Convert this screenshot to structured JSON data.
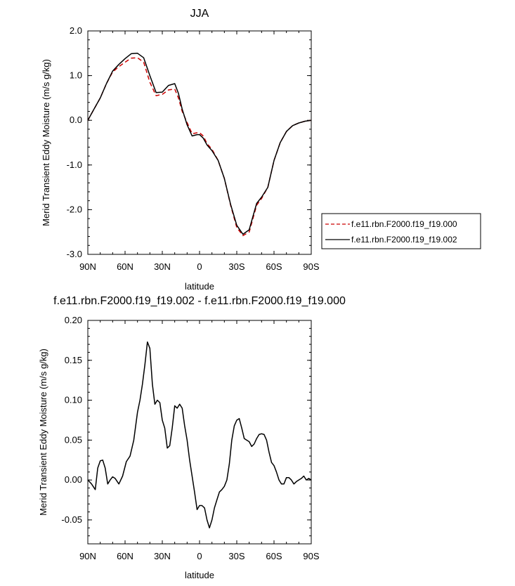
{
  "chart_data": [
    {
      "type": "line",
      "title": "JJA",
      "xlabel": "latitude",
      "ylabel": "Merid Transient Eddy Moisture (m/s g/kg)",
      "xlim": [
        90,
        -90
      ],
      "ylim": [
        -3.0,
        2.0
      ],
      "x_ticks": [
        90,
        60,
        30,
        0,
        -30,
        -60,
        -90
      ],
      "x_tick_labels": [
        "90N",
        "60N",
        "30N",
        "0",
        "30S",
        "60S",
        "90S"
      ],
      "y_ticks": [
        2.0,
        1.0,
        0.0,
        -1.0,
        -2.0,
        -3.0
      ],
      "y_tick_labels": [
        "2.0",
        "1.0",
        "0.0",
        "-1.0",
        "-2.0",
        "-3.0"
      ],
      "legend_position": "right",
      "series": [
        {
          "name": "f.e11.rbn.F2000.f19_f19.000",
          "color": "#cc0000",
          "dash": "dashed",
          "x": [
            90,
            85,
            80,
            75,
            70,
            65,
            60,
            55,
            50,
            45,
            40,
            35,
            30,
            25,
            20,
            17,
            14,
            10,
            6,
            2,
            0,
            -3,
            -6,
            -10,
            -15,
            -20,
            -25,
            -30,
            -35,
            -40,
            -43,
            -46,
            -50,
            -55,
            -60,
            -65,
            -70,
            -75,
            -80,
            -85,
            -90
          ],
          "y": [
            0.0,
            0.25,
            0.5,
            0.82,
            1.08,
            1.2,
            1.3,
            1.39,
            1.4,
            1.3,
            0.85,
            0.55,
            0.58,
            0.68,
            0.7,
            0.5,
            0.2,
            -0.05,
            -0.3,
            -0.28,
            -0.28,
            -0.35,
            -0.52,
            -0.65,
            -0.9,
            -1.3,
            -1.9,
            -2.4,
            -2.58,
            -2.5,
            -2.2,
            -1.9,
            -1.75,
            -1.5,
            -0.9,
            -0.5,
            -0.25,
            -0.12,
            -0.06,
            -0.02,
            0.0
          ]
        },
        {
          "name": "f.e11.rbn.F2000.f19_f19.002",
          "color": "#000000",
          "dash": "solid",
          "x": [
            90,
            85,
            80,
            75,
            70,
            65,
            60,
            55,
            50,
            45,
            40,
            35,
            30,
            25,
            20,
            17,
            14,
            10,
            6,
            2,
            0,
            -3,
            -6,
            -10,
            -15,
            -20,
            -25,
            -30,
            -35,
            -40,
            -43,
            -46,
            -50,
            -55,
            -60,
            -65,
            -70,
            -75,
            -80,
            -85,
            -90
          ],
          "y": [
            0.0,
            0.25,
            0.5,
            0.82,
            1.1,
            1.25,
            1.38,
            1.49,
            1.5,
            1.4,
            1.0,
            0.62,
            0.63,
            0.78,
            0.82,
            0.6,
            0.25,
            -0.1,
            -0.35,
            -0.32,
            -0.32,
            -0.4,
            -0.55,
            -0.68,
            -0.9,
            -1.3,
            -1.88,
            -2.35,
            -2.55,
            -2.45,
            -2.15,
            -1.86,
            -1.72,
            -1.5,
            -0.9,
            -0.5,
            -0.25,
            -0.12,
            -0.06,
            -0.02,
            0.0
          ]
        }
      ]
    },
    {
      "type": "line",
      "title": "f.e11.rbn.F2000.f19_f19.002 - f.e11.rbn.F2000.f19_f19.000",
      "xlabel": "latitude",
      "ylabel": "Merid Transient Eddy Moisture (m/s g/kg)",
      "xlim": [
        90,
        -90
      ],
      "ylim": [
        -0.08,
        0.2
      ],
      "x_ticks": [
        90,
        60,
        30,
        0,
        -30,
        -60,
        -90
      ],
      "x_tick_labels": [
        "90N",
        "60N",
        "30N",
        "0",
        "30S",
        "60S",
        "90S"
      ],
      "y_ticks": [
        0.2,
        0.15,
        0.1,
        0.05,
        0.0,
        -0.05
      ],
      "y_tick_labels": [
        "0.20",
        "0.15",
        "0.10",
        "0.05",
        "0.00",
        "-0.05"
      ],
      "series": [
        {
          "color": "#000000",
          "dash": "solid",
          "x": [
            90,
            87,
            84,
            82,
            80,
            78,
            76,
            74,
            72,
            70,
            68,
            65,
            62,
            59,
            56,
            53,
            50,
            48,
            46,
            44,
            42,
            40,
            38,
            36,
            34,
            32,
            30,
            28,
            26,
            24,
            22,
            20,
            18,
            16,
            14,
            12,
            10,
            8,
            6,
            4,
            2,
            0,
            -2,
            -4,
            -6,
            -8,
            -10,
            -12,
            -14,
            -16,
            -18,
            -20,
            -22,
            -24,
            -26,
            -28,
            -30,
            -32,
            -34,
            -36,
            -38,
            -40,
            -42,
            -44,
            -46,
            -48,
            -50,
            -52,
            -54,
            -56,
            -58,
            -60,
            -62,
            -64,
            -66,
            -68,
            -70,
            -72,
            -74,
            -76,
            -78,
            -80,
            -82,
            -84,
            -86,
            -88,
            -90
          ],
          "y": [
            0.0,
            -0.005,
            -0.012,
            0.015,
            0.024,
            0.025,
            0.015,
            -0.005,
            0.0,
            0.004,
            0.002,
            -0.005,
            0.005,
            0.023,
            0.03,
            0.05,
            0.085,
            0.1,
            0.12,
            0.145,
            0.173,
            0.165,
            0.12,
            0.095,
            0.1,
            0.097,
            0.075,
            0.065,
            0.04,
            0.043,
            0.065,
            0.093,
            0.09,
            0.095,
            0.09,
            0.068,
            0.05,
            0.025,
            0.005,
            -0.015,
            -0.037,
            -0.032,
            -0.032,
            -0.035,
            -0.05,
            -0.06,
            -0.05,
            -0.035,
            -0.025,
            -0.015,
            -0.012,
            -0.008,
            0.0,
            0.02,
            0.05,
            0.068,
            0.075,
            0.077,
            0.065,
            0.052,
            0.05,
            0.048,
            0.042,
            0.045,
            0.052,
            0.057,
            0.058,
            0.057,
            0.05,
            0.035,
            0.022,
            0.018,
            0.01,
            0.0,
            -0.005,
            -0.005,
            0.003,
            0.003,
            0.0,
            -0.005,
            -0.002,
            0.0,
            0.002,
            0.005,
            0.0,
            0.002,
            0.0
          ]
        }
      ]
    }
  ]
}
